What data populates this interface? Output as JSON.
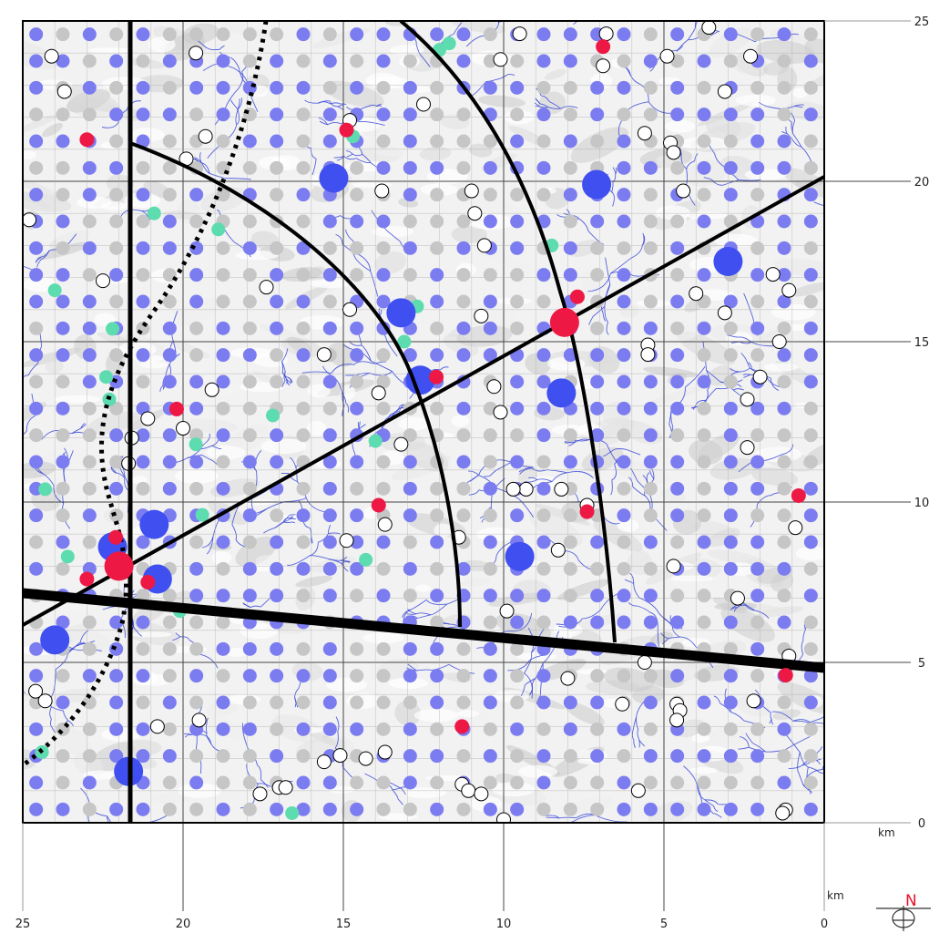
{
  "map": {
    "x_axis": {
      "ticks": [
        "25",
        "20",
        "15",
        "10",
        "5",
        "0"
      ],
      "unit": "km"
    },
    "y_axis": {
      "ticks": [
        "25",
        "20",
        "15",
        "10",
        "5",
        "0"
      ],
      "unit": "km"
    },
    "compass": {
      "letter": "N",
      "color": "#e8102a"
    },
    "colors": {
      "background": "#ffffff",
      "relief": "#eeeeee",
      "rivers": "#3848d8",
      "grid_blue": "#7b7cf0",
      "grid_grey": "#c6c6c6",
      "large_blue": "#3f4ff0",
      "red": "#ee1845",
      "teal": "#5ddcb0",
      "open": "#000000"
    },
    "large_blue_sites": [
      {
        "x": 15.3,
        "y": 20.1
      },
      {
        "x": 7.1,
        "y": 19.9
      },
      {
        "x": 3.0,
        "y": 17.5
      },
      {
        "x": 13.2,
        "y": 15.9
      },
      {
        "x": 12.6,
        "y": 13.8
      },
      {
        "x": 8.2,
        "y": 13.4
      },
      {
        "x": 20.9,
        "y": 9.3
      },
      {
        "x": 20.8,
        "y": 7.6
      },
      {
        "x": 9.5,
        "y": 8.3
      },
      {
        "x": 24.0,
        "y": 5.7
      },
      {
        "x": 21.7,
        "y": 1.6
      },
      {
        "x": 22.2,
        "y": 8.6
      }
    ],
    "red_sites": [
      {
        "x": 23.0,
        "y": 21.3,
        "r": 8
      },
      {
        "x": 14.9,
        "y": 21.6,
        "r": 8
      },
      {
        "x": 6.9,
        "y": 24.2,
        "r": 8
      },
      {
        "x": 7.7,
        "y": 16.4,
        "r": 8
      },
      {
        "x": 8.1,
        "y": 15.6,
        "r": 16
      },
      {
        "x": 12.1,
        "y": 13.9,
        "r": 8
      },
      {
        "x": 20.2,
        "y": 12.9,
        "r": 8
      },
      {
        "x": 13.9,
        "y": 9.9,
        "r": 8
      },
      {
        "x": 7.4,
        "y": 9.7,
        "r": 8
      },
      {
        "x": 0.8,
        "y": 10.2,
        "r": 8
      },
      {
        "x": 22.0,
        "y": 8.0,
        "r": 16
      },
      {
        "x": 22.1,
        "y": 8.9,
        "r": 8
      },
      {
        "x": 23.0,
        "y": 7.6,
        "r": 8
      },
      {
        "x": 21.1,
        "y": 7.5,
        "r": 8
      },
      {
        "x": 11.3,
        "y": 3.0,
        "r": 8
      },
      {
        "x": 1.2,
        "y": 4.6,
        "r": 8
      }
    ],
    "teal_sites": [
      {
        "x": 12.0,
        "y": 24.1
      },
      {
        "x": 11.7,
        "y": 24.3
      },
      {
        "x": 14.7,
        "y": 21.4
      },
      {
        "x": 7.0,
        "y": 20.0
      },
      {
        "x": 20.9,
        "y": 19.0
      },
      {
        "x": 18.9,
        "y": 18.5
      },
      {
        "x": 8.5,
        "y": 18.0
      },
      {
        "x": 24.0,
        "y": 16.6
      },
      {
        "x": 22.2,
        "y": 15.4
      },
      {
        "x": 12.7,
        "y": 16.1
      },
      {
        "x": 13.1,
        "y": 15.0
      },
      {
        "x": 22.4,
        "y": 13.9
      },
      {
        "x": 22.3,
        "y": 13.2
      },
      {
        "x": 17.2,
        "y": 12.7
      },
      {
        "x": 19.6,
        "y": 11.8
      },
      {
        "x": 14.0,
        "y": 11.9
      },
      {
        "x": 24.3,
        "y": 10.4
      },
      {
        "x": 19.4,
        "y": 9.6
      },
      {
        "x": 20.9,
        "y": 9.4
      },
      {
        "x": 23.6,
        "y": 8.3
      },
      {
        "x": 14.3,
        "y": 8.2
      },
      {
        "x": 20.1,
        "y": 6.6
      },
      {
        "x": 24.4,
        "y": 2.2
      },
      {
        "x": 16.6,
        "y": 0.3
      }
    ],
    "open_sites": [
      {
        "x": 23.7,
        "y": 22.8
      },
      {
        "x": 19.6,
        "y": 24.0
      },
      {
        "x": 14.8,
        "y": 21.9
      },
      {
        "x": 12.5,
        "y": 22.4
      },
      {
        "x": 19.3,
        "y": 21.4
      },
      {
        "x": 19.9,
        "y": 20.7
      },
      {
        "x": 13.8,
        "y": 19.7
      },
      {
        "x": 11.0,
        "y": 19.7
      },
      {
        "x": 10.9,
        "y": 19.0
      },
      {
        "x": 10.6,
        "y": 18.0
      },
      {
        "x": 24.8,
        "y": 18.8
      },
      {
        "x": 22.5,
        "y": 16.9
      },
      {
        "x": 17.4,
        "y": 16.7
      },
      {
        "x": 14.8,
        "y": 16.0
      },
      {
        "x": 10.7,
        "y": 15.8
      },
      {
        "x": 15.6,
        "y": 14.6
      },
      {
        "x": 19.1,
        "y": 13.5
      },
      {
        "x": 13.9,
        "y": 13.4
      },
      {
        "x": 10.3,
        "y": 13.6
      },
      {
        "x": 10.1,
        "y": 12.8
      },
      {
        "x": 21.1,
        "y": 12.6
      },
      {
        "x": 20.0,
        "y": 12.3
      },
      {
        "x": 21.6,
        "y": 12.0
      },
      {
        "x": 21.7,
        "y": 11.2
      },
      {
        "x": 13.2,
        "y": 11.8
      },
      {
        "x": 9.3,
        "y": 10.4
      },
      {
        "x": 8.2,
        "y": 10.4
      },
      {
        "x": 7.4,
        "y": 9.9
      },
      {
        "x": 13.7,
        "y": 9.3
      },
      {
        "x": 14.9,
        "y": 8.8
      },
      {
        "x": 11.4,
        "y": 8.9
      },
      {
        "x": 8.3,
        "y": 8.5
      },
      {
        "x": 24.2,
        "y": 5.8
      },
      {
        "x": 9.9,
        "y": 6.6
      },
      {
        "x": 8.0,
        "y": 4.5
      },
      {
        "x": 6.3,
        "y": 3.7
      },
      {
        "x": 5.6,
        "y": 5.0
      },
      {
        "x": 4.6,
        "y": 3.7
      },
      {
        "x": 4.5,
        "y": 3.5
      },
      {
        "x": 4.6,
        "y": 3.2
      },
      {
        "x": 2.2,
        "y": 3.8
      },
      {
        "x": 24.6,
        "y": 4.1
      },
      {
        "x": 24.3,
        "y": 3.8
      },
      {
        "x": 20.8,
        "y": 3.0
      },
      {
        "x": 19.5,
        "y": 3.2
      },
      {
        "x": 13.7,
        "y": 2.2
      },
      {
        "x": 15.1,
        "y": 2.1
      },
      {
        "x": 15.6,
        "y": 1.9
      },
      {
        "x": 14.3,
        "y": 2.0
      },
      {
        "x": 17.0,
        "y": 1.1
      },
      {
        "x": 16.8,
        "y": 1.1
      },
      {
        "x": 17.6,
        "y": 0.9
      },
      {
        "x": 11.3,
        "y": 1.2
      },
      {
        "x": 11.1,
        "y": 1.0
      },
      {
        "x": 10.7,
        "y": 0.9
      },
      {
        "x": 10.0,
        "y": 0.1
      },
      {
        "x": 5.8,
        "y": 1.0
      },
      {
        "x": 1.2,
        "y": 0.4
      },
      {
        "x": 1.3,
        "y": 0.3
      },
      {
        "x": 9.7,
        "y": 10.4
      },
      {
        "x": 6.8,
        "y": 24.6
      },
      {
        "x": 6.9,
        "y": 23.6
      },
      {
        "x": 9.5,
        "y": 24.6
      },
      {
        "x": 10.1,
        "y": 23.8
      },
      {
        "x": 3.6,
        "y": 24.8
      },
      {
        "x": 4.9,
        "y": 23.9
      },
      {
        "x": 5.6,
        "y": 21.5
      },
      {
        "x": 4.8,
        "y": 21.2
      },
      {
        "x": 4.7,
        "y": 20.9
      },
      {
        "x": 4.4,
        "y": 19.7
      },
      {
        "x": 3.1,
        "y": 22.8
      },
      {
        "x": 1.6,
        "y": 17.1
      },
      {
        "x": 1.1,
        "y": 16.6
      },
      {
        "x": 4.0,
        "y": 16.5
      },
      {
        "x": 3.1,
        "y": 15.9
      },
      {
        "x": 5.5,
        "y": 14.9
      },
      {
        "x": 5.5,
        "y": 14.6
      },
      {
        "x": 1.4,
        "y": 15.0
      },
      {
        "x": 2.0,
        "y": 13.9
      },
      {
        "x": 2.4,
        "y": 13.2
      },
      {
        "x": 2.4,
        "y": 11.7
      },
      {
        "x": 0.9,
        "y": 9.2
      },
      {
        "x": 4.7,
        "y": 8.0
      },
      {
        "x": 2.7,
        "y": 7.0
      },
      {
        "x": 1.1,
        "y": 5.2
      },
      {
        "x": 2.3,
        "y": 23.9
      },
      {
        "x": 24.1,
        "y": 23.9
      }
    ]
  }
}
